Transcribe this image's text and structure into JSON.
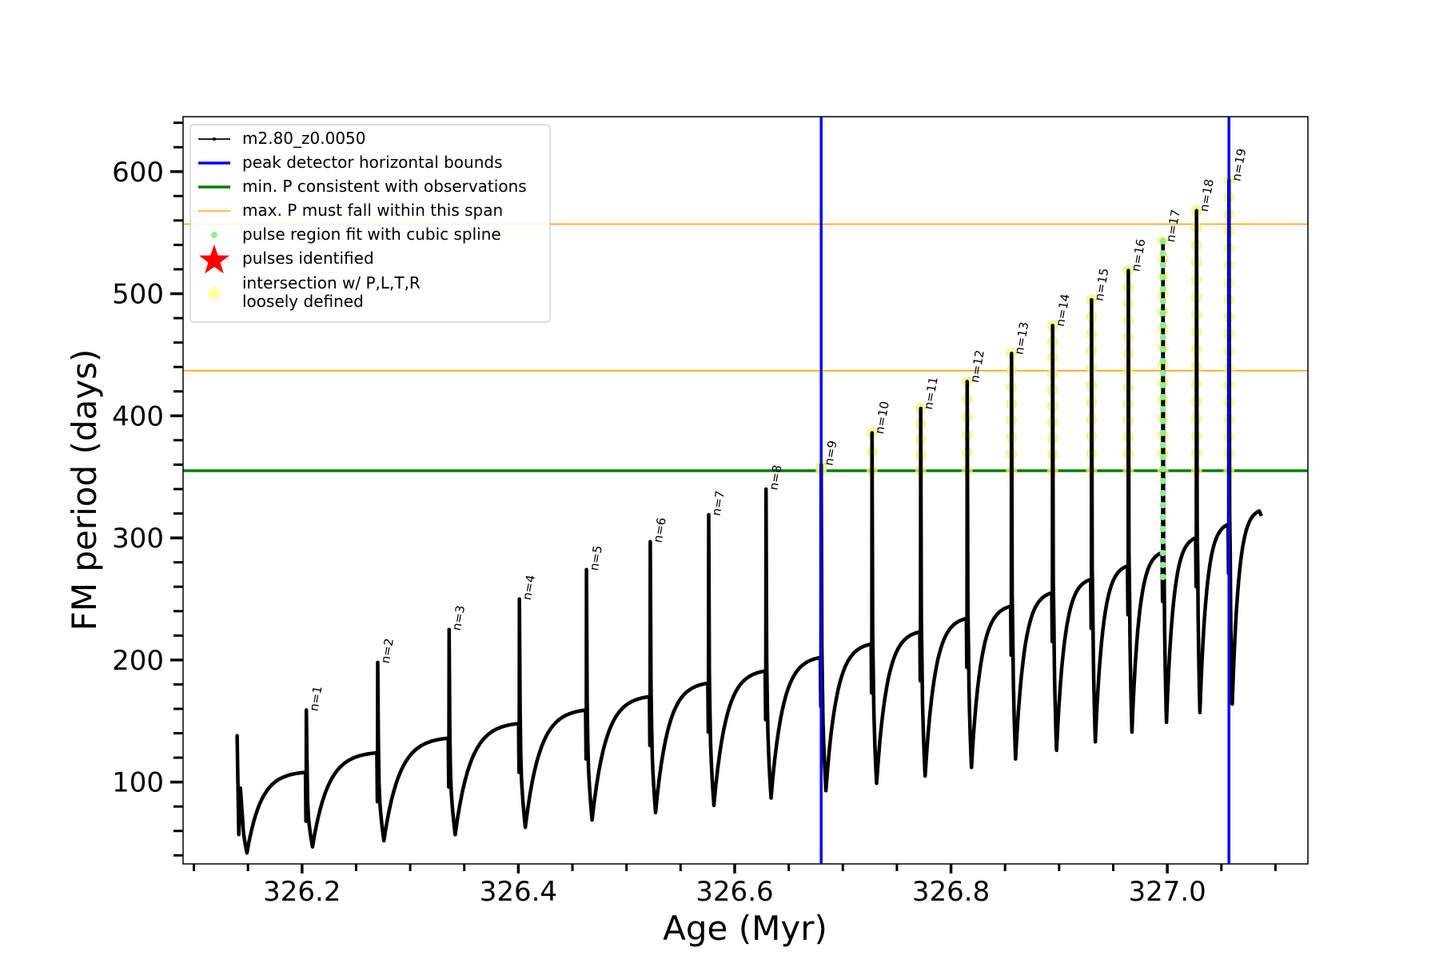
{
  "chart_data": {
    "type": "line",
    "xlabel": "Age (Myr)",
    "ylabel": "FM period (days)",
    "xlim": [
      326.09,
      327.13
    ],
    "ylim": [
      33,
      645
    ],
    "xticks": [
      {
        "value": 326.2,
        "label": "326.2"
      },
      {
        "value": 326.4,
        "label": "326.4"
      },
      {
        "value": 326.6,
        "label": "326.6"
      },
      {
        "value": 326.8,
        "label": "326.8"
      },
      {
        "value": 327.0,
        "label": "327.0"
      }
    ],
    "yticks": [
      {
        "value": 100,
        "label": "100"
      },
      {
        "value": 200,
        "label": "200"
      },
      {
        "value": 300,
        "label": "300"
      },
      {
        "value": 400,
        "label": "400"
      },
      {
        "value": 500,
        "label": "500"
      },
      {
        "value": 600,
        "label": "600"
      }
    ],
    "grid": false,
    "legend_position": "top-left",
    "start": {
      "x": 326.14,
      "y": 138,
      "floor": 57
    },
    "cycles": [
      {
        "n": "n=1",
        "peak_x": 326.204,
        "peak_y": 159,
        "min": 42,
        "pre": 108
      },
      {
        "n": "n=2",
        "peak_x": 326.27,
        "peak_y": 198,
        "min": 47,
        "pre": 124
      },
      {
        "n": "n=3",
        "peak_x": 326.336,
        "peak_y": 225,
        "min": 52,
        "pre": 136
      },
      {
        "n": "n=4",
        "peak_x": 326.401,
        "peak_y": 250,
        "min": 57,
        "pre": 148
      },
      {
        "n": "n=5",
        "peak_x": 326.463,
        "peak_y": 274,
        "min": 63,
        "pre": 159
      },
      {
        "n": "n=6",
        "peak_x": 326.522,
        "peak_y": 297,
        "min": 69,
        "pre": 170
      },
      {
        "n": "n=7",
        "peak_x": 326.576,
        "peak_y": 319,
        "min": 75,
        "pre": 181
      },
      {
        "n": "n=8",
        "peak_x": 326.629,
        "peak_y": 340,
        "min": 81,
        "pre": 191
      },
      {
        "n": "n=9",
        "peak_x": 326.68,
        "peak_y": 360,
        "min": 87,
        "pre": 202
      },
      {
        "n": "n=10",
        "peak_x": 326.727,
        "peak_y": 386,
        "min": 93,
        "pre": 213
      },
      {
        "n": "n=11",
        "peak_x": 326.772,
        "peak_y": 406,
        "min": 99,
        "pre": 223
      },
      {
        "n": "n=12",
        "peak_x": 326.815,
        "peak_y": 428,
        "min": 105,
        "pre": 234
      },
      {
        "n": "n=13",
        "peak_x": 326.856,
        "peak_y": 451,
        "min": 112,
        "pre": 244
      },
      {
        "n": "n=14",
        "peak_x": 326.894,
        "peak_y": 474,
        "min": 119,
        "pre": 255
      },
      {
        "n": "n=15",
        "peak_x": 326.93,
        "peak_y": 495,
        "min": 126,
        "pre": 266
      },
      {
        "n": "n=16",
        "peak_x": 326.964,
        "peak_y": 519,
        "min": 133,
        "pre": 277
      },
      {
        "n": "n=17",
        "peak_x": 326.996,
        "peak_y": 543,
        "min": 141,
        "pre": 288
      },
      {
        "n": "n=18",
        "peak_x": 327.027,
        "peak_y": 568,
        "min": 149,
        "pre": 300
      },
      {
        "n": "n=19",
        "peak_x": 327.057,
        "peak_y": 593,
        "min": 157,
        "pre": 311
      }
    ],
    "end": {
      "x": 327.085,
      "y": 322,
      "min": 164
    },
    "vlines": [
      {
        "x": 326.68,
        "color": "#0000ff"
      },
      {
        "x": 327.057,
        "color": "#0000ff"
      }
    ],
    "hlines": [
      {
        "y": 355,
        "color": "#008000"
      },
      {
        "y": 437,
        "color": "#ffa500"
      },
      {
        "y": 557,
        "color": "#ffa500"
      }
    ],
    "loosely_defined_pulses": [
      "n=9",
      "n=10",
      "n=11",
      "n=12",
      "n=13",
      "n=14",
      "n=15",
      "n=16",
      "n=17",
      "n=18",
      "n=19"
    ],
    "spline_pulses": [
      {
        "n": "n=17",
        "y_from": 268,
        "y_to": 543
      }
    ],
    "legend": [
      {
        "label": "m2.80_z0.0050",
        "kind": "line-marker",
        "color": "#000000"
      },
      {
        "label": "peak detector horizontal bounds",
        "kind": "line",
        "color": "#0000ff"
      },
      {
        "label": "min. P consistent with observations",
        "kind": "line",
        "color": "#008000"
      },
      {
        "label": "max. P must fall within this span",
        "kind": "thin-line",
        "color": "#ffa500"
      },
      {
        "label": "pulse region fit with cubic spline",
        "kind": "dot",
        "color": "#90ee90"
      },
      {
        "label": "pulses identified",
        "kind": "star",
        "color": "#ff0000"
      },
      {
        "label": "intersection w/ P,L,T,R\nloosely defined",
        "kind": "circle",
        "color": "#ffff99"
      }
    ]
  }
}
